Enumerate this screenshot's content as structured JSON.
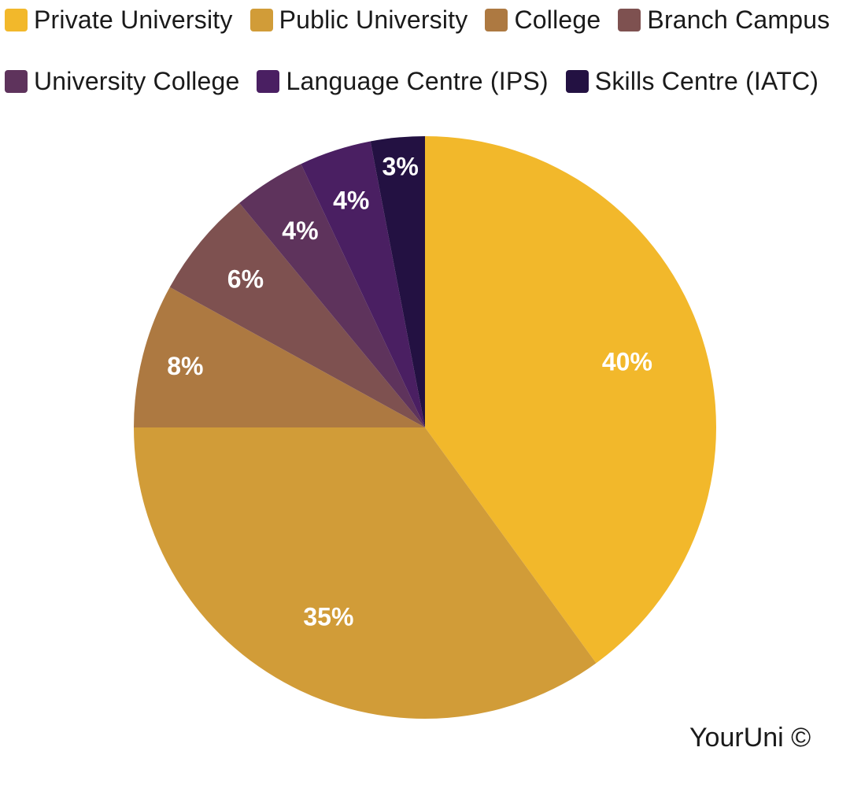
{
  "chart_data": {
    "type": "pie",
    "title": "",
    "start_angle_deg": -90,
    "direction": "clockwise",
    "legend_position": "top",
    "slices": [
      {
        "name": "Private University",
        "value": 40,
        "label": "40%",
        "color": "#F2B82B"
      },
      {
        "name": "Public University",
        "value": 35,
        "label": "35%",
        "color": "#D19C38"
      },
      {
        "name": "College",
        "value": 8,
        "label": "8%",
        "color": "#AD7941"
      },
      {
        "name": "Branch Campus",
        "value": 6,
        "label": "6%",
        "color": "#7E5150"
      },
      {
        "name": "University College",
        "value": 4,
        "label": "4%",
        "color": "#5E335C"
      },
      {
        "name": "Language Centre (IPS)",
        "value": 4,
        "label": "4%",
        "color": "#4A1F62"
      },
      {
        "name": "Skills Centre (IATC)",
        "value": 3,
        "label": "3%",
        "color": "#231142"
      }
    ]
  },
  "footer": {
    "watermark": "YourUni ©"
  }
}
